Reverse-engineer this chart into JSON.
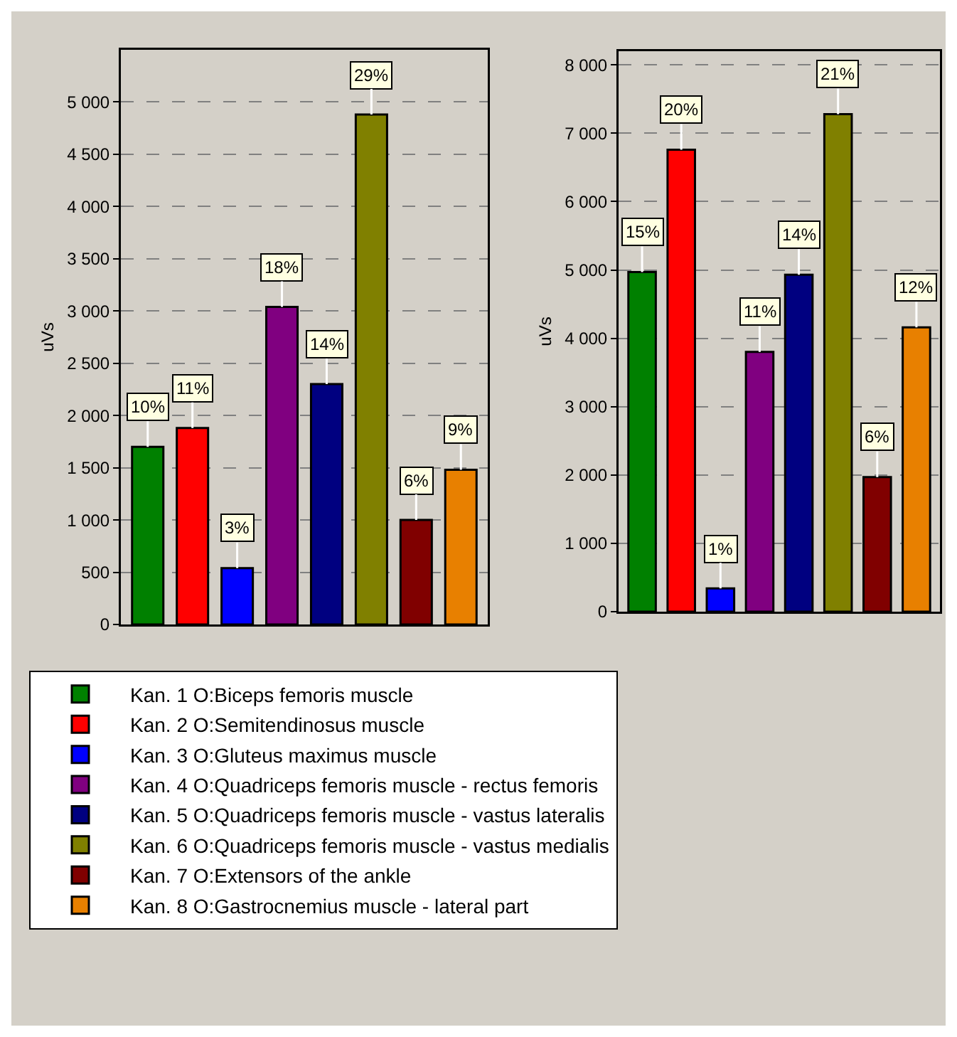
{
  "chart_data": [
    {
      "type": "bar",
      "ylabel": "uVs",
      "categories": [
        null,
        null,
        null,
        null,
        null,
        null,
        null,
        null
      ],
      "ylim": [
        0,
        5500
      ],
      "yticks": [
        {
          "value": 0,
          "label": "0"
        },
        500,
        {
          "value": 1000,
          "label": "1 000"
        },
        {
          "value": 1500,
          "label": "1 500"
        },
        {
          "value": 2000,
          "label": "2 000"
        },
        {
          "value": 2500,
          "label": "2 500"
        },
        {
          "value": 3000,
          "label": "3 000"
        },
        {
          "value": 3500,
          "label": "3 500"
        },
        {
          "value": 4000,
          "label": "4 000"
        },
        {
          "value": 4500,
          "label": "4 500"
        },
        {
          "value": 5000,
          "label": "5 000"
        }
      ],
      "grid": "y",
      "legend": "bottom",
      "tick_labels": "y",
      "series": [
        {
          "name": "Kan. 1 O:Biceps femoris muscle",
          "color": "#008000",
          "values": [
            1700,
            null,
            null,
            null,
            null,
            null,
            null,
            null
          ]
        },
        {
          "name": "Kan. 2 O:Semitendinosus muscle",
          "color": "#ff0000",
          "values": [
            null,
            1880,
            null,
            null,
            null,
            null,
            null,
            null
          ]
        },
        {
          "name": "Kan. 3 O:Gluteus maximus muscle",
          "color": "#0000ff",
          "values": [
            null,
            null,
            540,
            null,
            null,
            null,
            null,
            null
          ]
        },
        {
          "name": "Kan. 4 O:Quadriceps femoris muscle - rectus femoris",
          "color": "#800080",
          "values": [
            null,
            null,
            null,
            3040,
            null,
            null,
            null,
            null
          ]
        },
        {
          "name": "Kan. 5 O:Quadriceps femoris muscle - vastus lateralis",
          "color": "#000080",
          "values": [
            null,
            null,
            null,
            null,
            2300,
            null,
            null,
            null
          ]
        },
        {
          "name": "Kan. 6 O:Quadriceps femoris muscle - vastus medialis",
          "color": "#808000",
          "values": [
            null,
            null,
            null,
            null,
            null,
            4880,
            null,
            null
          ]
        },
        {
          "name": "Kan. 7 O:Extensors of the ankle",
          "color": "#800000",
          "values": [
            null,
            null,
            null,
            null,
            null,
            null,
            1000,
            null
          ]
        },
        {
          "name": "Kan. 8 O:Gastrocnemius muscle - lateral part",
          "color": "#e88000",
          "values": [
            null,
            null,
            null,
            null,
            null,
            null,
            null,
            1480
          ]
        }
      ],
      "annotations": [
        {
          "text": "10%",
          "y": 1700
        },
        {
          "text": "11%",
          "y": 1880
        },
        {
          "text": "3%",
          "y": 540
        },
        {
          "text": "18%",
          "y": 3040
        },
        {
          "text": "14%",
          "y": 2300
        },
        {
          "text": "29%",
          "y": 4880
        },
        {
          "text": "6%",
          "y": 1000
        },
        {
          "text": "9%",
          "y": 1480
        }
      ]
    },
    {
      "type": "bar",
      "ylabel": "uVs",
      "categories": [
        null,
        null,
        null,
        null,
        null,
        null,
        null,
        null
      ],
      "ylim": [
        0,
        8200
      ],
      "yticks": [
        {
          "value": 0,
          "label": "0"
        },
        {
          "value": 1000,
          "label": "1 000"
        },
        {
          "value": 2000,
          "label": "2 000"
        },
        {
          "value": 3000,
          "label": "3 000"
        },
        {
          "value": 4000,
          "label": "4 000"
        },
        {
          "value": 5000,
          "label": "5 000"
        },
        {
          "value": 6000,
          "label": "6 000"
        },
        {
          "value": 7000,
          "label": "7 000"
        },
        {
          "value": 8000,
          "label": "8 000"
        }
      ],
      "grid": "y",
      "tick_labels": "y",
      "series": [
        {
          "color": "#008000",
          "values": [
            4970,
            null,
            null,
            null,
            null,
            null,
            null,
            null
          ]
        },
        {
          "color": "#ff0000",
          "values": [
            null,
            6760,
            null,
            null,
            null,
            null,
            null,
            null
          ]
        },
        {
          "color": "#0000ff",
          "values": [
            null,
            null,
            340,
            null,
            null,
            null,
            null,
            null
          ]
        },
        {
          "color": "#800080",
          "values": [
            null,
            null,
            null,
            3800,
            null,
            null,
            null,
            null
          ]
        },
        {
          "color": "#000080",
          "values": [
            null,
            null,
            null,
            null,
            4930,
            null,
            null,
            null
          ]
        },
        {
          "color": "#808000",
          "values": [
            null,
            null,
            null,
            null,
            null,
            7280,
            null,
            null
          ]
        },
        {
          "color": "#800000",
          "values": [
            null,
            null,
            null,
            null,
            null,
            null,
            1970,
            null
          ]
        },
        {
          "color": "#e88000",
          "values": [
            null,
            null,
            null,
            null,
            null,
            null,
            null,
            4160
          ]
        }
      ],
      "annotations": [
        {
          "text": "15%",
          "y": 4970
        },
        {
          "text": "20%",
          "y": 6760
        },
        {
          "text": "1%",
          "y": 340
        },
        {
          "text": "11%",
          "y": 3800
        },
        {
          "text": "14%",
          "y": 4930
        },
        {
          "text": "21%",
          "y": 7280
        },
        {
          "text": "6%",
          "y": 1970
        },
        {
          "text": "12%",
          "y": 4160
        }
      ]
    }
  ]
}
